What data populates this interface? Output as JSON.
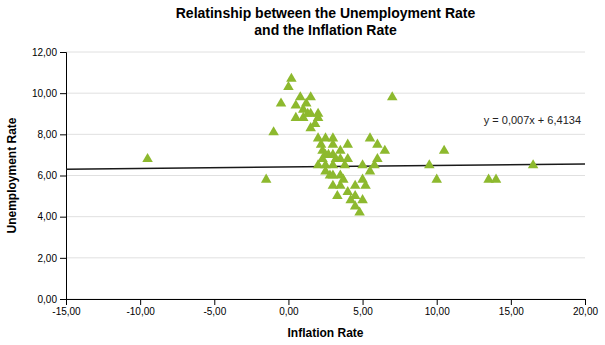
{
  "chart_data": {
    "type": "scatter",
    "title": "Relatinship between the Unemployment Rate\nand the Inflation Rate",
    "xlabel": "Inflation Rate",
    "ylabel": "Unemployment Rate",
    "annotations": [
      "y = 0,007x + 6,4134"
    ],
    "xlim": [
      -15,
      20
    ],
    "ylim": [
      0,
      12
    ],
    "xticks": [
      {
        "value": -15,
        "label": "-15,00"
      },
      {
        "value": -10,
        "label": "-10,00"
      },
      {
        "value": -5,
        "label": "-5,00"
      },
      {
        "value": 0,
        "label": "0,00"
      },
      {
        "value": 5,
        "label": "5,00"
      },
      {
        "value": 10,
        "label": "10,00"
      },
      {
        "value": 15,
        "label": "15,00"
      },
      {
        "value": 20,
        "label": "20,00"
      }
    ],
    "yticks": [
      {
        "value": 0,
        "label": "0,00"
      },
      {
        "value": 2,
        "label": "2,00"
      },
      {
        "value": 4,
        "label": "4,00"
      },
      {
        "value": 6,
        "label": "6,00"
      },
      {
        "value": 8,
        "label": "8,00"
      },
      {
        "value": 10,
        "label": "10,00"
      },
      {
        "value": 12,
        "label": "12,00"
      }
    ],
    "grid": "y",
    "series": [
      {
        "type": "scatter",
        "color": "#8DB92E",
        "marker": "triangle",
        "x": [
          -9.5,
          -1.5,
          -1.0,
          -0.5,
          0.0,
          0.2,
          0.5,
          0.5,
          0.8,
          1.0,
          1.0,
          1.2,
          1.3,
          1.5,
          1.5,
          1.5,
          1.8,
          2.0,
          2.0,
          2.0,
          2.0,
          2.2,
          2.3,
          2.3,
          2.5,
          2.5,
          2.5,
          2.5,
          2.7,
          2.8,
          3.0,
          3.0,
          3.0,
          3.0,
          3.0,
          3.0,
          3.2,
          3.3,
          3.5,
          3.5,
          3.5,
          3.5,
          3.7,
          3.8,
          4.0,
          4.0,
          4.0,
          4.2,
          4.5,
          4.5,
          4.5,
          4.8,
          5.0,
          5.0,
          5.0,
          5.2,
          5.5,
          5.5,
          5.8,
          6.0,
          6.0,
          6.5,
          7.0,
          9.5,
          10.0,
          10.5,
          13.5,
          14.0,
          16.5
        ],
        "values": [
          6.8,
          5.8,
          8.1,
          9.5,
          10.3,
          10.7,
          9.4,
          8.8,
          9.8,
          9.2,
          8.8,
          9.5,
          9.0,
          9.0,
          9.8,
          8.3,
          8.5,
          9.0,
          8.8,
          7.8,
          6.5,
          7.5,
          7.2,
          6.8,
          7.8,
          7.0,
          6.5,
          6.2,
          7.0,
          6.0,
          7.8,
          7.5,
          7.0,
          6.5,
          6.0,
          5.5,
          6.8,
          5.0,
          7.2,
          6.8,
          6.0,
          5.5,
          5.8,
          6.5,
          7.5,
          6.8,
          5.2,
          4.8,
          5.5,
          5.0,
          4.5,
          4.2,
          6.5,
          5.8,
          4.8,
          5.5,
          7.8,
          6.2,
          6.5,
          7.5,
          6.8,
          7.2,
          9.8,
          6.5,
          5.8,
          7.2,
          5.8,
          5.8,
          6.5
        ]
      },
      {
        "type": "line",
        "color": "#1a1a1a",
        "line_style": "solid",
        "x": [
          -15,
          20
        ],
        "values": [
          6.3084,
          6.5534
        ]
      }
    ]
  }
}
